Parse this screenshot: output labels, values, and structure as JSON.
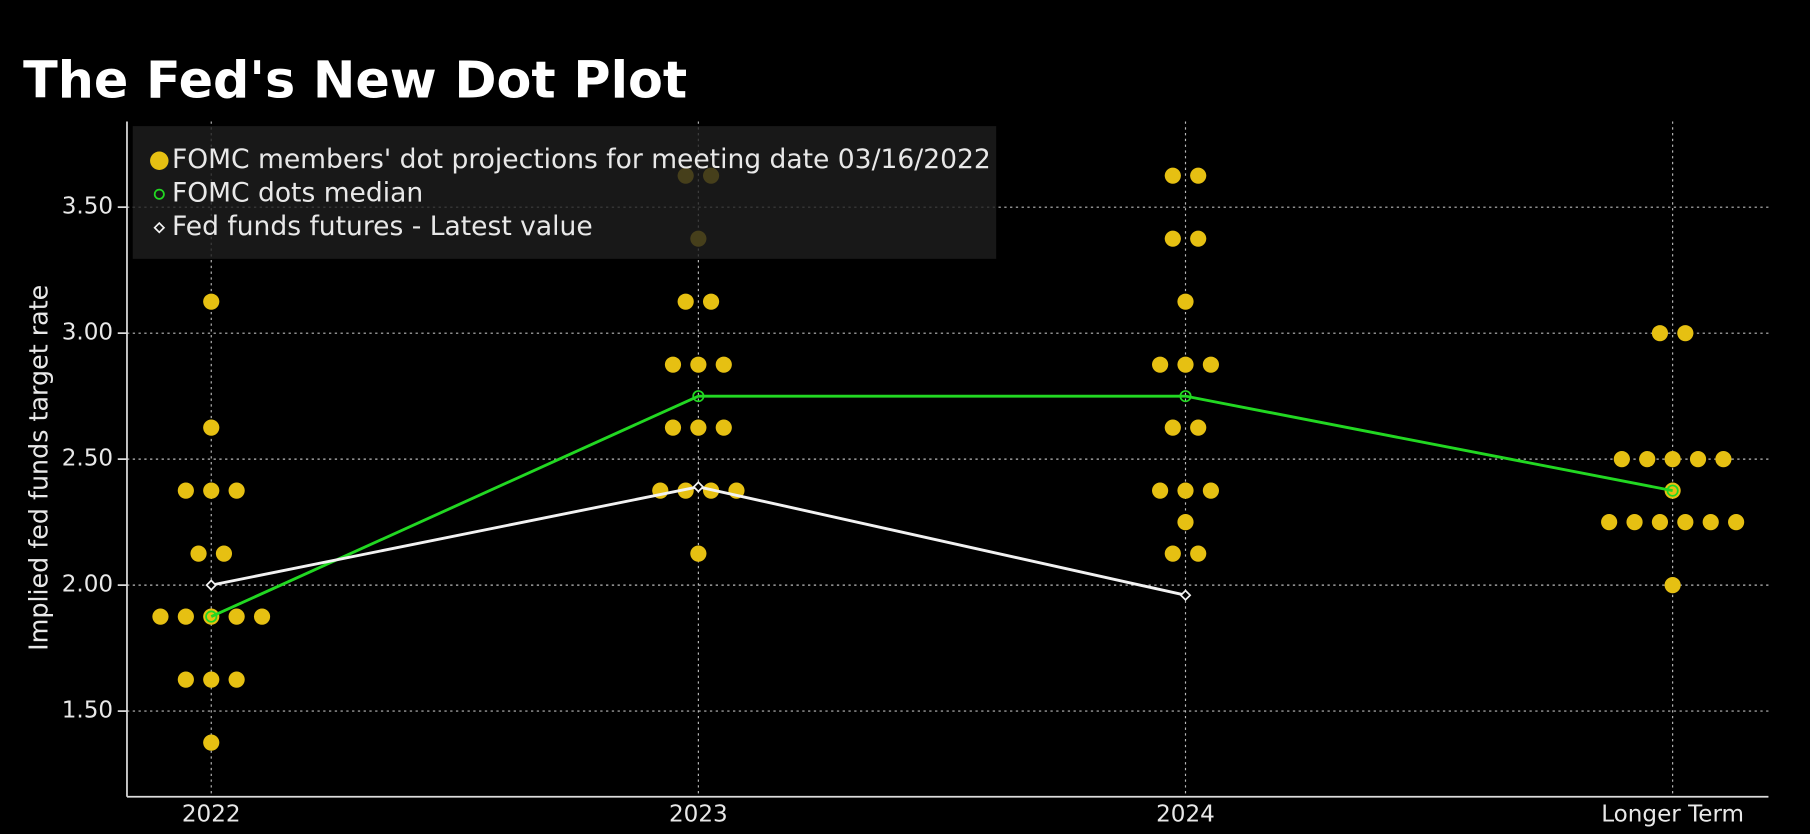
{
  "chart_data": {
    "type": "dot_plot",
    "title": "The Fed's New Dot Plot",
    "y_label": "Implied fed funds target rate",
    "categories": [
      "2022",
      "2023",
      "2024",
      "Longer Term"
    ],
    "dots": {
      "name": "FOMC members' dot projections for meeting date 03/16/2022",
      "color": "#e6c012",
      "values": [
        [
          3.125,
          2.625,
          2.375,
          2.375,
          2.375,
          2.125,
          2.125,
          1.875,
          1.875,
          1.875,
          1.875,
          1.875,
          1.625,
          1.625,
          1.625,
          1.375
        ],
        [
          3.625,
          3.625,
          3.375,
          3.125,
          3.125,
          2.875,
          2.875,
          2.875,
          2.625,
          2.625,
          2.625,
          2.375,
          2.375,
          2.375,
          2.375,
          2.125
        ],
        [
          3.625,
          3.625,
          3.375,
          3.375,
          3.125,
          2.875,
          2.875,
          2.875,
          2.625,
          2.625,
          2.375,
          2.375,
          2.375,
          2.25,
          2.125,
          2.125
        ],
        [
          3.0,
          3.0,
          2.5,
          2.5,
          2.5,
          2.5,
          2.5,
          2.375,
          2.25,
          2.25,
          2.25,
          2.25,
          2.25,
          2.25,
          2.0
        ]
      ]
    },
    "series": [
      {
        "name": "FOMC dots median",
        "color": "#22d822",
        "marker": "circle",
        "values": [
          1.875,
          2.75,
          2.75,
          2.375
        ]
      },
      {
        "name": "Fed funds futures - Latest value",
        "color": "#f2f2f2",
        "marker": "diamond",
        "values": [
          2.0,
          2.39,
          1.96,
          null
        ]
      }
    ],
    "ylim": [
      1.16,
      3.84
    ],
    "yticks": [
      {
        "value": 1.5,
        "label": "1.50"
      },
      {
        "value": 2.0,
        "label": "2.00"
      },
      {
        "value": 2.5,
        "label": "2.50"
      },
      {
        "value": 3.0,
        "label": "3.00"
      },
      {
        "value": 3.5,
        "label": "3.50"
      }
    ],
    "grid": true
  }
}
